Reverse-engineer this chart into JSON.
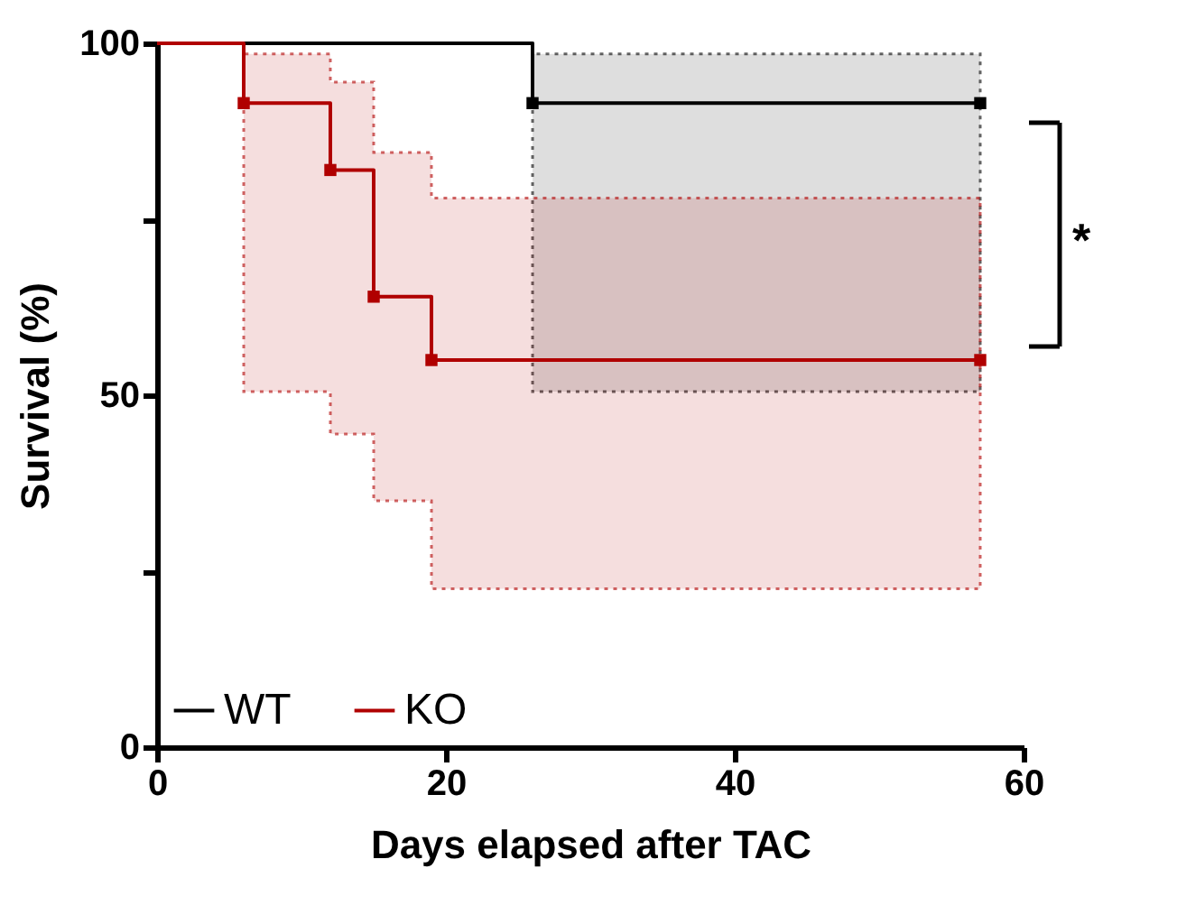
{
  "chart_data": {
    "type": "step",
    "xlabel": "Days elapsed after TAC",
    "ylabel": "Survival (%)",
    "xlim": [
      0,
      60
    ],
    "xticks": [
      0,
      20,
      40,
      60
    ],
    "ylim": [
      0,
      100
    ],
    "yticks": [
      0,
      {
        "value": 25,
        "label": null
      },
      50,
      {
        "value": 75,
        "label": null
      },
      100
    ],
    "grid": false,
    "legend": "bottom left",
    "marker": "square",
    "line_style": "solid",
    "series": [
      {
        "name": "WT",
        "color": "#000000",
        "x": [
          0,
          26,
          57
        ],
        "values": [
          100,
          91.5,
          91.5
        ],
        "lower": [
          100,
          50.5,
          50.5
        ],
        "upper": [
          100,
          98.5,
          98.5
        ]
      },
      {
        "name": "KO",
        "color": "#b00000",
        "x": [
          0,
          6,
          12,
          15,
          19,
          57
        ],
        "values": [
          100,
          91.5,
          82,
          64,
          55,
          55
        ],
        "lower": [
          100,
          50.5,
          44.5,
          35,
          22.5,
          22.5
        ],
        "upper": [
          100,
          98.5,
          94.5,
          84.5,
          78,
          78
        ]
      }
    ],
    "annotations": [
      "*"
    ]
  }
}
